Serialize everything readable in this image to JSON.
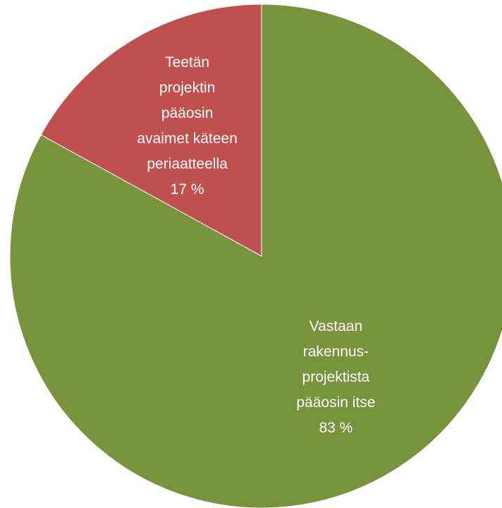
{
  "chart_data": {
    "type": "pie",
    "categories": [
      "Vastaan\nrakennus-\nprojektista\npääosin itse",
      "Teetän\nprojektin\npääosin\navaimet käteen\nperiaatteella"
    ],
    "values": [
      83,
      17
    ],
    "value_labels": [
      "83 %",
      "17 %"
    ],
    "colors": [
      "#77933c",
      "#c0504d"
    ],
    "start_angle": 0,
    "direction": "clockwise"
  }
}
